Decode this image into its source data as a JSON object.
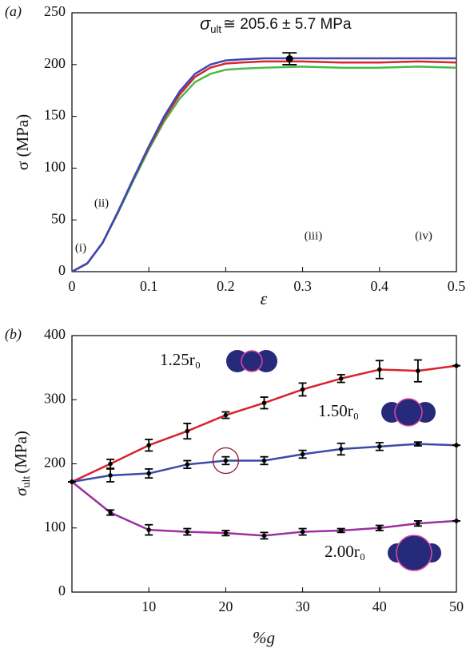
{
  "chart_data": [
    {
      "type": "line",
      "panel_label": "(a)",
      "xlabel": "ε",
      "ylabel": "σ (MPa)",
      "annotation": {
        "symbol": "σ",
        "subscript": "ult",
        "text": "≅ 205.6 ± 5.7 MPa"
      },
      "x": [
        0,
        0.02,
        0.04,
        0.06,
        0.08,
        0.1,
        0.12,
        0.14,
        0.16,
        0.18,
        0.2,
        0.22,
        0.25,
        0.3,
        0.35,
        0.4,
        0.45,
        0.5
      ],
      "xlim": [
        0,
        0.5
      ],
      "xticks": [
        0,
        0.1,
        0.2,
        0.3,
        0.4,
        0.5
      ],
      "ylim": [
        0,
        250
      ],
      "yticks": [
        0,
        50,
        100,
        150,
        200,
        250
      ],
      "series": [
        {
          "color": "#4bb84a",
          "values": [
            0,
            8,
            28,
            57,
            88,
            118,
            145,
            167,
            183,
            191,
            195,
            196,
            197,
            198,
            197,
            197,
            198,
            197
          ]
        },
        {
          "color": "#d8262c",
          "values": [
            0,
            8,
            28,
            58,
            90,
            120,
            148,
            171,
            188,
            197,
            201,
            202,
            203,
            203,
            202,
            202,
            203,
            202
          ]
        },
        {
          "color": "#3b48b5",
          "values": [
            0,
            8,
            28,
            58,
            90,
            121,
            150,
            174,
            191,
            200,
            204,
            205,
            206,
            206,
            206,
            206,
            206,
            206
          ]
        }
      ],
      "error_point": {
        "x": 0.283,
        "value": 205.6,
        "error": 5.7
      },
      "stage_labels": [
        "(i)",
        "(ii)",
        "(iii)",
        "(iv)"
      ]
    },
    {
      "type": "line",
      "panel_label": "(b)",
      "xlabel": "%g",
      "ylabel": {
        "symbol": "σ",
        "subscript": "ult",
        "unit": "(MPa)"
      },
      "x": [
        0,
        5,
        10,
        15,
        20,
        25,
        30,
        35,
        40,
        45,
        50
      ],
      "xlim": [
        0,
        50
      ],
      "xticks": [
        10,
        20,
        30,
        40,
        50
      ],
      "ylim": [
        0,
        400
      ],
      "yticks": [
        0,
        100,
        200,
        300,
        400
      ],
      "series": [
        {
          "name": "1.25r₀",
          "color": "#d8232a",
          "values": [
            172,
            200,
            229,
            251,
            276,
            295,
            316,
            333,
            347,
            345,
            353
          ],
          "errors": [
            0,
            7,
            9,
            12,
            5,
            9,
            10,
            6,
            14,
            17,
            0
          ]
        },
        {
          "name": "1.50r₀",
          "color": "#3a4aa8",
          "values": [
            172,
            182,
            185,
            199,
            205,
            205,
            215,
            223,
            227,
            231,
            229
          ],
          "errors": [
            0,
            10,
            7,
            6,
            6,
            6,
            6,
            9,
            6,
            3,
            0
          ]
        },
        {
          "name": "2.00r₀",
          "color": "#9b30a0",
          "values": [
            172,
            124,
            97,
            94,
            92,
            88,
            94,
            96,
            100,
            107,
            111
          ],
          "errors": [
            0,
            4,
            8,
            5,
            4,
            5,
            5,
            3,
            4,
            4,
            0
          ]
        }
      ],
      "highlight": {
        "x": 20,
        "y": 205
      }
    }
  ]
}
